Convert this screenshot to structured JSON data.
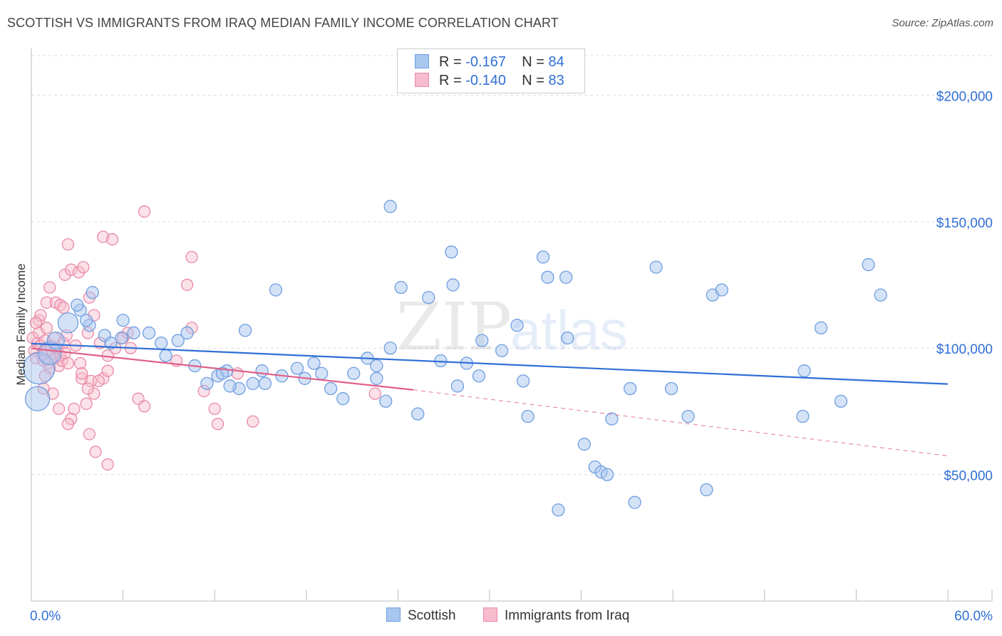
{
  "header": {
    "title": "SCOTTISH VS IMMIGRANTS FROM IRAQ MEDIAN FAMILY INCOME CORRELATION CHART",
    "source": "Source: ZipAtlas.com"
  },
  "legend_top": {
    "row1": {
      "r_label": "R =",
      "r_value": "-0.167",
      "n_label": "N =",
      "n_value": "84"
    },
    "row2": {
      "r_label": "R =",
      "r_value": "-0.140",
      "n_label": "N =",
      "n_value": "83"
    }
  },
  "legend_bottom": {
    "series1": "Scottish",
    "series2": "Immigrants from Iraq"
  },
  "watermark": {
    "zip": "ZIP",
    "atlas": "atlas"
  },
  "colors": {
    "blue_fill": "#a9c6ef",
    "blue_stroke": "#6f9ee0",
    "blue_line": "#2f6fd6",
    "pink_fill": "#f6bccd",
    "pink_stroke": "#e98aa8",
    "pink_line": "#e0608a",
    "grid": "#dddddd",
    "axis_label": "#2f6fd6"
  },
  "chart_data": {
    "type": "scatter",
    "title": "SCOTTISH VS IMMIGRANTS FROM IRAQ MEDIAN FAMILY INCOME CORRELATION CHART",
    "xlabel": "",
    "ylabel": "Median Family Income",
    "xlim": [
      0,
      60
    ],
    "ylim": [
      0,
      210000
    ],
    "x_tick_labels": [
      "0.0%",
      "60.0%"
    ],
    "y_ticks": [
      50000,
      100000,
      150000,
      200000
    ],
    "y_tick_labels": [
      "$50,000",
      "$100,000",
      "$150,000",
      "$200,000"
    ],
    "series": [
      {
        "name": "Scottish",
        "R": -0.167,
        "N": 84,
        "trend": {
          "x0": 0,
          "y0": 101800,
          "x1": 60,
          "y1": 85800
        },
        "points": [
          [
            0.5,
            92000
          ],
          [
            0.4,
            80000
          ],
          [
            1.2,
            98000
          ],
          [
            1.6,
            103000
          ],
          [
            2.4,
            110000
          ],
          [
            3.2,
            115000
          ],
          [
            3.8,
            109000
          ],
          [
            3.6,
            111000
          ],
          [
            4.8,
            105000
          ],
          [
            5.2,
            102000
          ],
          [
            5.9,
            104000
          ],
          [
            6.7,
            106000
          ],
          [
            7.7,
            106000
          ],
          [
            8.8,
            97000
          ],
          [
            9.6,
            103000
          ],
          [
            10.7,
            93000
          ],
          [
            11.5,
            86000
          ],
          [
            12.2,
            89000
          ],
          [
            12.8,
            91000
          ],
          [
            13.6,
            84000
          ],
          [
            14.5,
            86000
          ],
          [
            15.3,
            86000
          ],
          [
            15.1,
            91000
          ],
          [
            16.4,
            89000
          ],
          [
            17.4,
            92000
          ],
          [
            17.9,
            88000
          ],
          [
            19.0,
            90000
          ],
          [
            19.6,
            84000
          ],
          [
            20.4,
            80000
          ],
          [
            21.1,
            90000
          ],
          [
            22.0,
            96000
          ],
          [
            22.6,
            88000
          ],
          [
            22.6,
            93000
          ],
          [
            23.2,
            79000
          ],
          [
            23.5,
            100000
          ],
          [
            24.2,
            124000
          ],
          [
            25.3,
            74000
          ],
          [
            26.0,
            120000
          ],
          [
            26.8,
            95000
          ],
          [
            27.6,
            125000
          ],
          [
            27.9,
            85000
          ],
          [
            28.5,
            94000
          ],
          [
            29.3,
            89000
          ],
          [
            29.5,
            103000
          ],
          [
            30.8,
            99000
          ],
          [
            32.2,
            87000
          ],
          [
            32.5,
            73000
          ],
          [
            33.8,
            128000
          ],
          [
            33.5,
            136000
          ],
          [
            34.5,
            36000
          ],
          [
            35.1,
            104000
          ],
          [
            35.0,
            128000
          ],
          [
            36.2,
            62000
          ],
          [
            36.9,
            53000
          ],
          [
            37.3,
            51000
          ],
          [
            37.7,
            50000
          ],
          [
            38.0,
            72000
          ],
          [
            39.2,
            84000
          ],
          [
            39.5,
            39000
          ],
          [
            40.9,
            132000
          ],
          [
            41.9,
            84000
          ],
          [
            43.0,
            73000
          ],
          [
            44.6,
            121000
          ],
          [
            45.2,
            123000
          ],
          [
            44.2,
            44000
          ],
          [
            50.6,
            91000
          ],
          [
            50.5,
            73000
          ],
          [
            51.7,
            108000
          ],
          [
            53.0,
            79000
          ],
          [
            54.8,
            133000
          ],
          [
            55.6,
            121000
          ],
          [
            4.0,
            122000
          ],
          [
            8.5,
            102000
          ],
          [
            10.2,
            106000
          ],
          [
            16.0,
            123000
          ],
          [
            23.5,
            156000
          ],
          [
            27.5,
            138000
          ],
          [
            14.0,
            107000
          ],
          [
            6.0,
            111000
          ],
          [
            13.0,
            85000
          ],
          [
            18.5,
            94000
          ],
          [
            12.5,
            90000
          ],
          [
            31.8,
            109000
          ],
          [
            3.0,
            117000
          ]
        ],
        "point_sizes_note": "three enlarged points near x 0-3"
      },
      {
        "name": "Immigrants from Iraq",
        "R": -0.14,
        "N": 83,
        "trend": {
          "x0": 0,
          "y0": 99900,
          "x1": 25.0,
          "y1": 83500,
          "dashed_to_x": 60,
          "dashed_to_y": 57400
        },
        "points": [
          [
            0.1,
            104000
          ],
          [
            0.2,
            99000
          ],
          [
            0.3,
            96000
          ],
          [
            0.4,
            102000
          ],
          [
            0.5,
            106000
          ],
          [
            0.6,
            101000
          ],
          [
            0.7,
            97000
          ],
          [
            0.8,
            95000
          ],
          [
            0.9,
            103000
          ],
          [
            1.0,
            99000
          ],
          [
            1.1,
            94000
          ],
          [
            1.2,
            92000
          ],
          [
            1.3,
            101000
          ],
          [
            1.4,
            98000
          ],
          [
            1.5,
            104000
          ],
          [
            1.6,
            96000
          ],
          [
            1.7,
            100000
          ],
          [
            1.8,
            93000
          ],
          [
            1.9,
            97000
          ],
          [
            2.0,
            95000
          ],
          [
            2.1,
            102000
          ],
          [
            2.2,
            98000
          ],
          [
            2.3,
            105000
          ],
          [
            2.4,
            94000
          ],
          [
            0.5,
            111000
          ],
          [
            0.6,
            113000
          ],
          [
            1.0,
            118000
          ],
          [
            1.2,
            124000
          ],
          [
            1.6,
            118000
          ],
          [
            1.9,
            117000
          ],
          [
            2.2,
            129000
          ],
          [
            2.6,
            131000
          ],
          [
            3.1,
            130000
          ],
          [
            3.4,
            132000
          ],
          [
            3.8,
            120000
          ],
          [
            2.4,
            141000
          ],
          [
            4.7,
            144000
          ],
          [
            5.3,
            143000
          ],
          [
            7.4,
            154000
          ],
          [
            10.2,
            125000
          ],
          [
            10.5,
            136000
          ],
          [
            10.5,
            108000
          ],
          [
            4.1,
            113000
          ],
          [
            3.7,
            106000
          ],
          [
            4.5,
            102000
          ],
          [
            5.0,
            97000
          ],
          [
            5.5,
            100000
          ],
          [
            6.0,
            104000
          ],
          [
            6.5,
            100000
          ],
          [
            3.2,
            94000
          ],
          [
            3.3,
            88000
          ],
          [
            3.9,
            87000
          ],
          [
            4.1,
            82000
          ],
          [
            4.7,
            88000
          ],
          [
            5.0,
            91000
          ],
          [
            2.8,
            76000
          ],
          [
            3.6,
            78000
          ],
          [
            2.6,
            72000
          ],
          [
            3.8,
            66000
          ],
          [
            4.2,
            59000
          ],
          [
            5.0,
            54000
          ],
          [
            7.0,
            80000
          ],
          [
            7.4,
            77000
          ],
          [
            9.5,
            95000
          ],
          [
            11.3,
            83000
          ],
          [
            12.0,
            76000
          ],
          [
            12.2,
            70000
          ],
          [
            13.5,
            90000
          ],
          [
            14.5,
            71000
          ],
          [
            22.5,
            82000
          ],
          [
            1.4,
            82000
          ],
          [
            0.8,
            84000
          ],
          [
            2.4,
            70000
          ],
          [
            1.8,
            76000
          ],
          [
            3.3,
            90000
          ],
          [
            2.1,
            116000
          ],
          [
            0.3,
            110000
          ],
          [
            6.3,
            106000
          ],
          [
            1.0,
            108000
          ],
          [
            0.9,
            89000
          ],
          [
            2.9,
            101000
          ],
          [
            3.7,
            84000
          ],
          [
            4.4,
            87000
          ]
        ]
      }
    ]
  }
}
